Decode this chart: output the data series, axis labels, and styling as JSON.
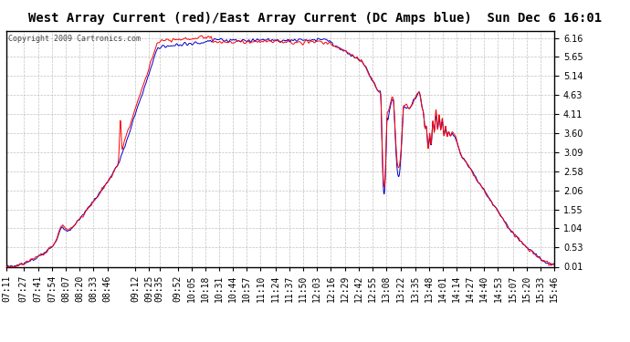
{
  "title": "West Array Current (red)/East Array Current (DC Amps blue)  Sun Dec 6 16:01",
  "copyright": "Copyright 2009 Cartronics.com",
  "y_ticks": [
    0.01,
    0.53,
    1.04,
    1.55,
    2.06,
    2.58,
    3.09,
    3.6,
    4.11,
    4.63,
    5.14,
    5.65,
    6.16
  ],
  "ylim": [
    0.01,
    6.35
  ],
  "x_labels": [
    "07:11",
    "07:27",
    "07:41",
    "07:54",
    "08:07",
    "08:20",
    "08:33",
    "08:46",
    "09:12",
    "09:25",
    "09:35",
    "09:52",
    "10:05",
    "10:18",
    "10:31",
    "10:44",
    "10:57",
    "11:10",
    "11:24",
    "11:37",
    "11:50",
    "12:03",
    "12:16",
    "12:29",
    "12:42",
    "12:55",
    "13:08",
    "13:22",
    "13:35",
    "13:48",
    "14:01",
    "14:14",
    "14:27",
    "14:40",
    "14:53",
    "15:07",
    "15:20",
    "15:33",
    "15:46"
  ],
  "background_color": "#ffffff",
  "plot_bg_color": "#ffffff",
  "grid_color": "#bbbbbb",
  "red_color": "#ff0000",
  "blue_color": "#0000cc",
  "title_fontsize": 10,
  "tick_fontsize": 7
}
